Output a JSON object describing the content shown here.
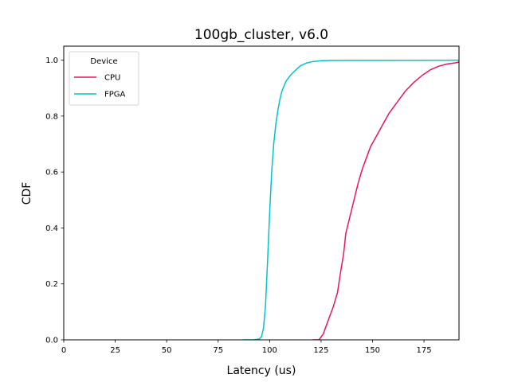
{
  "chart_data": {
    "type": "line",
    "title": "100gb_cluster, v6.0",
    "xlabel": "Latency (us)",
    "ylabel": "CDF",
    "xlim": [
      0,
      192
    ],
    "ylim": [
      0,
      1.05
    ],
    "x_ticks": [
      0,
      25,
      50,
      75,
      100,
      125,
      150,
      175
    ],
    "y_ticks": [
      0.0,
      0.2,
      0.4,
      0.6,
      0.8,
      1.0
    ],
    "x_tick_labels": [
      "0",
      "25",
      "50",
      "75",
      "100",
      "125",
      "150",
      "175"
    ],
    "y_tick_labels": [
      "0.0",
      "0.2",
      "0.4",
      "0.6",
      "0.8",
      "1.0"
    ],
    "grid": false,
    "legend": {
      "title": "Device",
      "placement": "top-left"
    },
    "series": [
      {
        "name": "CPU",
        "color": "#e8175d",
        "x": [
          121,
          124,
          126,
          127,
          129,
          131,
          133,
          134,
          136,
          137,
          139,
          141,
          143,
          145,
          147,
          149,
          152,
          155,
          158,
          162,
          166,
          170,
          174,
          178,
          182,
          186,
          190,
          192
        ],
        "y": [
          0.0,
          0.0,
          0.02,
          0.04,
          0.08,
          0.12,
          0.17,
          0.22,
          0.31,
          0.38,
          0.44,
          0.5,
          0.56,
          0.61,
          0.65,
          0.69,
          0.73,
          0.77,
          0.81,
          0.85,
          0.89,
          0.92,
          0.945,
          0.965,
          0.978,
          0.986,
          0.99,
          0.993
        ]
      },
      {
        "name": "FPGA",
        "color": "#00c5c5",
        "x": [
          87,
          92,
          95,
          96,
          97,
          98,
          99,
          100,
          101,
          102,
          103,
          104,
          105,
          106,
          108,
          110,
          112,
          115,
          118,
          121,
          125,
          130,
          192
        ],
        "y": [
          0.0,
          0.0,
          0.003,
          0.01,
          0.04,
          0.12,
          0.28,
          0.45,
          0.6,
          0.7,
          0.77,
          0.82,
          0.86,
          0.89,
          0.925,
          0.945,
          0.96,
          0.98,
          0.99,
          0.995,
          0.998,
          0.999,
          1.0
        ]
      }
    ]
  }
}
